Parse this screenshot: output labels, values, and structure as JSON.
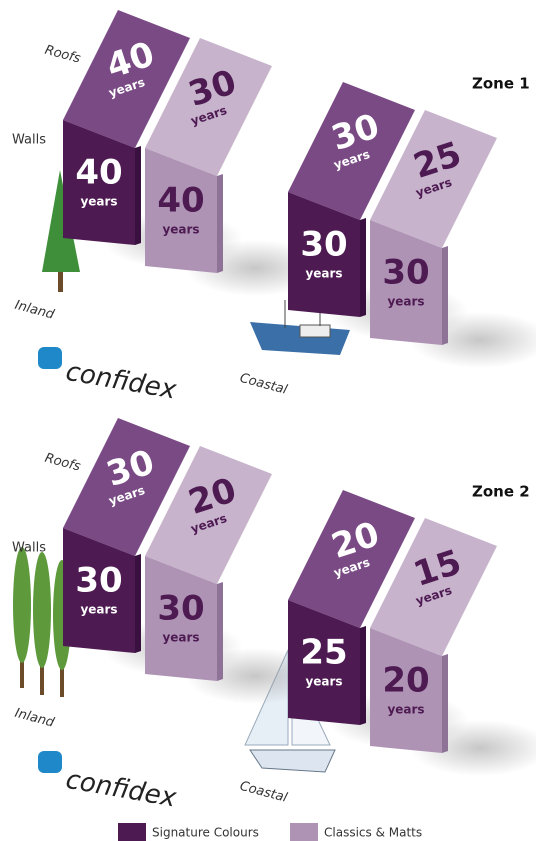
{
  "unit": "years",
  "zones": [
    {
      "title": "Zone 1",
      "roof_label": "Roofs",
      "wall_label": "Walls",
      "brand": "confidex",
      "sites": [
        {
          "name": "Inland",
          "products": [
            {
              "roof": "40",
              "wall": "40"
            },
            {
              "roof": "30",
              "wall": "40"
            }
          ]
        },
        {
          "name": "Coastal",
          "products": [
            {
              "roof": "30",
              "wall": "30"
            },
            {
              "roof": "25",
              "wall": "30"
            }
          ]
        }
      ]
    },
    {
      "title": "Zone 2",
      "roof_label": "Roofs",
      "wall_label": "Walls",
      "brand": "confidex",
      "sites": [
        {
          "name": "Inland",
          "products": [
            {
              "roof": "30",
              "wall": "30"
            },
            {
              "roof": "20",
              "wall": "30"
            }
          ]
        },
        {
          "name": "Coastal",
          "products": [
            {
              "roof": "20",
              "wall": "25"
            },
            {
              "roof": "15",
              "wall": "20"
            }
          ]
        }
      ]
    }
  ],
  "legend": [
    {
      "label": "Signature Colours"
    },
    {
      "label": "Classics & Matts"
    }
  ]
}
